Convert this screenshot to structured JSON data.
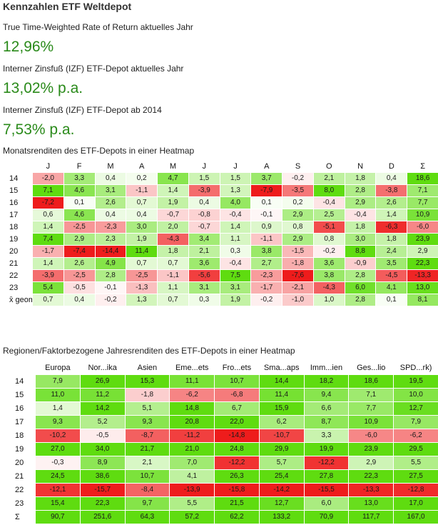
{
  "title": "Kennzahlen ETF Weltdepot",
  "metrics": [
    {
      "label": "True Time-Weighted Rate of Return aktuelles Jahr",
      "value": "12,96%"
    },
    {
      "label": "Interner Zinsfuß (IZF) ETF-Depot aktuelles Jahr",
      "value": "13,02% p.a."
    },
    {
      "label": "Interner Zinsfuß (IZF) ETF-Depot ab 2014",
      "value": "7,53% p.a."
    }
  ],
  "heatmap1": {
    "title": "Monatsrenditen des ETF-Depots in einer Heatmap",
    "columns": [
      "J",
      "F",
      "M",
      "A",
      "M",
      "J",
      "J",
      "A",
      "S",
      "O",
      "N",
      "D",
      "Σ"
    ],
    "rows": [
      {
        "label": "14",
        "values": [
          "-2,0",
          "3,3",
          "0,4",
          "0,2",
          "4,7",
          "1,5",
          "1,5",
          "3,7",
          "-0,2",
          "2,1",
          "1,8",
          "0,4",
          "18,6"
        ]
      },
      {
        "label": "15",
        "values": [
          "7,1",
          "4,6",
          "3,1",
          "-1,1",
          "1,4",
          "-3,9",
          "1,3",
          "-7,9",
          "-3,5",
          "8,0",
          "2,8",
          "-3,8",
          "7,1"
        ]
      },
      {
        "label": "16",
        "values": [
          "-7,2",
          "0,1",
          "2,6",
          "0,7",
          "1,9",
          "0,4",
          "4,0",
          "0,1",
          "0,2",
          "-0,4",
          "2,9",
          "2,6",
          "7,7"
        ]
      },
      {
        "label": "17",
        "values": [
          "0,6",
          "4,6",
          "0,4",
          "0,4",
          "-0,7",
          "-0,8",
          "-0,4",
          "-0,1",
          "2,9",
          "2,5",
          "-0,4",
          "1,4",
          "10,9"
        ]
      },
      {
        "label": "18",
        "values": [
          "1,4",
          "-2,5",
          "-2,3",
          "3,0",
          "2,0",
          "-0,7",
          "1,4",
          "0,9",
          "0,8",
          "-5,1",
          "1,8",
          "-6,3",
          "-6,0"
        ]
      },
      {
        "label": "19",
        "values": [
          "7,4",
          "2,9",
          "2,3",
          "1,9",
          "-4,3",
          "3,4",
          "1,1",
          "-1,1",
          "2,9",
          "0,8",
          "3,0",
          "1,8",
          "23,9"
        ]
      },
      {
        "label": "20",
        "values": [
          "-1,7",
          "-7,4",
          "-14,4",
          "11,4",
          "1,8",
          "2,1",
          "0,3",
          "3,8",
          "-1,5",
          "-0,2",
          "8,8",
          "2,4",
          "2,9"
        ]
      },
      {
        "label": "21",
        "values": [
          "1,4",
          "2,6",
          "4,9",
          "0,7",
          "0,7",
          "3,6",
          "-0,4",
          "2,7",
          "-1,8",
          "3,6",
          "-0,9",
          "3,5",
          "22,3"
        ]
      },
      {
        "label": "22",
        "values": [
          "-3,9",
          "-2,5",
          "2,8",
          "-2,5",
          "-1,1",
          "-5,6",
          "7,5",
          "-2,3",
          "-7,6",
          "3,8",
          "2,8",
          "-4,5",
          "-13,3"
        ]
      },
      {
        "label": "23",
        "values": [
          "5,4",
          "-0,5",
          "-0,1",
          "-1,3",
          "1,1",
          "3,1",
          "3,1",
          "-1,7",
          "-2,1",
          "-4,3",
          "6,0",
          "4,1",
          "13,0"
        ]
      },
      {
        "label": "x̄ geom",
        "values": [
          "0,7",
          "0,4",
          "-0,2",
          "1,3",
          "0,7",
          "0,3",
          "1,9",
          "-0,2",
          "-1,0",
          "1,0",
          "2,8",
          "0,1",
          "8,1"
        ]
      }
    ]
  },
  "heatmap2": {
    "title": "Regionen/Faktorbezogene Jahresrenditen des ETF-Depots in einer Heatmap",
    "columns": [
      "Europa",
      "Nor...ika",
      "Asien",
      "Eme...ets",
      "Fro...ets",
      "Sma...aps",
      "Imm...ien",
      "Ges...lio",
      "SPD...rk)"
    ],
    "rows": [
      {
        "label": "14",
        "values": [
          "7,9",
          "26,9",
          "15,3",
          "11,1",
          "10,7",
          "14,4",
          "18,2",
          "18,6",
          "19,5"
        ]
      },
      {
        "label": "15",
        "values": [
          "11,0",
          "11,2",
          "-1,8",
          "-6,2",
          "-6,8",
          "11,4",
          "9,4",
          "7,1",
          "10,0"
        ]
      },
      {
        "label": "16",
        "values": [
          "1,4",
          "14,2",
          "5,1",
          "14,8",
          "6,7",
          "15,9",
          "6,6",
          "7,7",
          "12,7"
        ]
      },
      {
        "label": "17",
        "values": [
          "9,3",
          "5,2",
          "9,3",
          "20,8",
          "22,0",
          "6,2",
          "8,7",
          "10,9",
          "7,9"
        ]
      },
      {
        "label": "18",
        "values": [
          "-10,2",
          "-0,5",
          "-8,7",
          "-11,2",
          "-14,8",
          "-10,7",
          "3,3",
          "-6,0",
          "-6,2"
        ]
      },
      {
        "label": "19",
        "values": [
          "27,0",
          "34,0",
          "21,7",
          "21,0",
          "24,8",
          "29,9",
          "19,9",
          "23,9",
          "29,5"
        ]
      },
      {
        "label": "20",
        "values": [
          "-0,3",
          "8,9",
          "2,1",
          "7,0",
          "-12,2",
          "5,7",
          "-12,2",
          "2,9",
          "5,5"
        ]
      },
      {
        "label": "21",
        "values": [
          "24,5",
          "38,6",
          "10,7",
          "4,1",
          "26,3",
          "25,4",
          "27,8",
          "22,3",
          "27,5"
        ]
      },
      {
        "label": "22",
        "values": [
          "-12,1",
          "-15,7",
          "-8,4",
          "-13,9",
          "-15,8",
          "-14,2",
          "-15,5",
          "-13,3",
          "-12,8"
        ]
      },
      {
        "label": "23",
        "values": [
          "15,4",
          "22,3",
          "9,7",
          "5,5",
          "21,5",
          "12,7",
          "6,0",
          "13,0",
          "17,0"
        ]
      },
      {
        "label": "Σ",
        "values": [
          "90,7",
          "251,6",
          "64,3",
          "57,2",
          "62,2",
          "133,2",
          "70,9",
          "117,7",
          "167,0"
        ]
      }
    ]
  },
  "colors": {
    "positive_max": "#5fdc10",
    "negative_max": "#ee1c1c",
    "neutral": "#ffffff",
    "value_text": "#2a8a1a"
  }
}
